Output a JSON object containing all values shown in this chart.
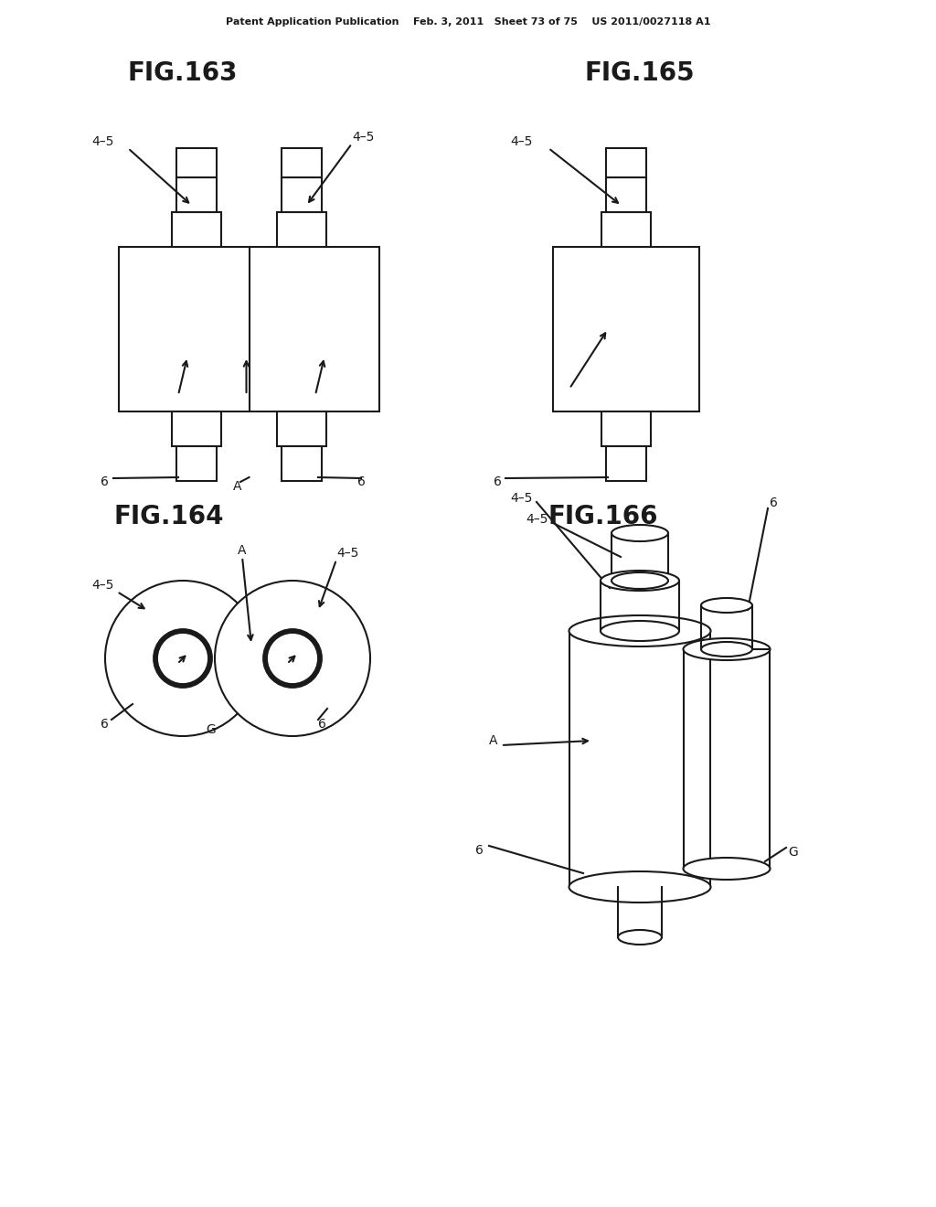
{
  "bg_color": "#ffffff",
  "header_text": "Patent Application Publication    Feb. 3, 2011   Sheet 73 of 75    US 2011/0027118 A1",
  "fig163_title": "FIG.163",
  "fig164_title": "FIG.164",
  "fig165_title": "FIG.165",
  "fig166_title": "FIG.166",
  "line_color": "#1a1a1a",
  "line_width": 1.5,
  "label_fontsize": 10,
  "title_fontsize": 20
}
